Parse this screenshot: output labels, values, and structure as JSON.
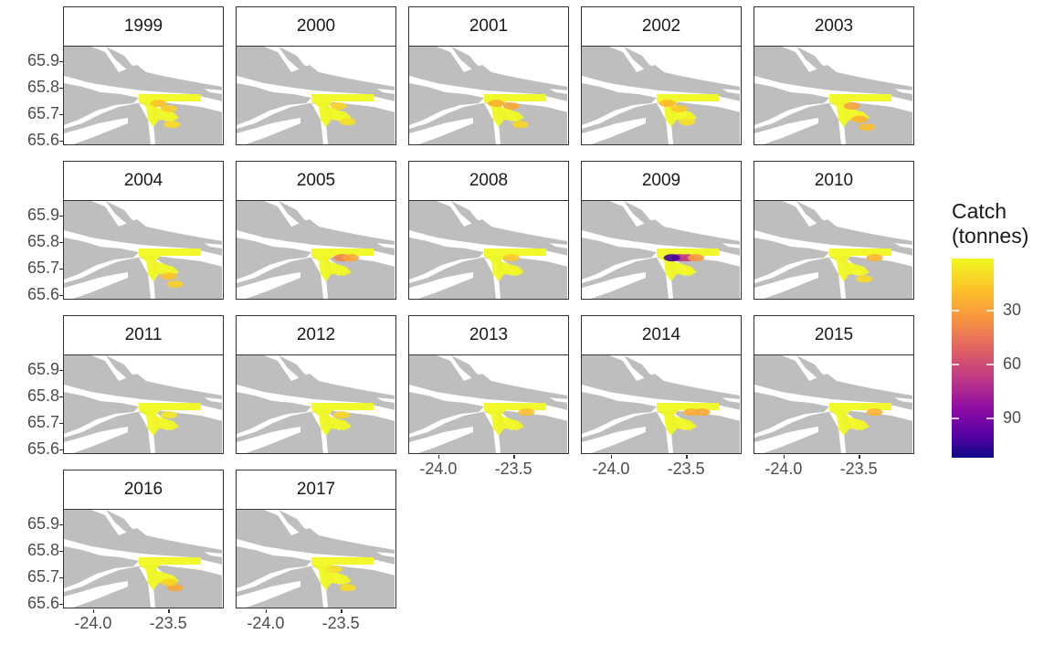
{
  "panels": [
    {
      "year": "1999",
      "spots": [
        {
          "lon": -23.57,
          "lat": 65.74,
          "catch": 18
        },
        {
          "lon": -23.5,
          "lat": 65.72,
          "catch": 14
        },
        {
          "lon": -23.48,
          "lat": 65.66,
          "catch": 10
        }
      ]
    },
    {
      "year": "2000",
      "spots": [
        {
          "lon": -23.52,
          "lat": 65.73,
          "catch": 12
        },
        {
          "lon": -23.46,
          "lat": 65.67,
          "catch": 8
        }
      ]
    },
    {
      "year": "2001",
      "spots": [
        {
          "lon": -23.62,
          "lat": 65.74,
          "catch": 25
        },
        {
          "lon": -23.52,
          "lat": 65.73,
          "catch": 28
        },
        {
          "lon": -23.46,
          "lat": 65.66,
          "catch": 12
        }
      ]
    },
    {
      "year": "2002",
      "spots": [
        {
          "lon": -23.63,
          "lat": 65.74,
          "catch": 22
        },
        {
          "lon": -23.55,
          "lat": 65.72,
          "catch": 16
        },
        {
          "lon": -23.5,
          "lat": 65.67,
          "catch": 8
        }
      ]
    },
    {
      "year": "2003",
      "spots": [
        {
          "lon": -23.55,
          "lat": 65.73,
          "catch": 30
        },
        {
          "lon": -23.5,
          "lat": 65.68,
          "catch": 24
        },
        {
          "lon": -23.45,
          "lat": 65.65,
          "catch": 20
        }
      ]
    },
    {
      "year": "2004",
      "spots": [
        {
          "lon": -23.5,
          "lat": 65.67,
          "catch": 18
        },
        {
          "lon": -23.46,
          "lat": 65.64,
          "catch": 14
        }
      ]
    },
    {
      "year": "2005",
      "spots": [
        {
          "lon": -23.5,
          "lat": 65.74,
          "catch": 42
        },
        {
          "lon": -23.44,
          "lat": 65.74,
          "catch": 30
        }
      ]
    },
    {
      "year": "2008",
      "spots": [
        {
          "lon": -23.52,
          "lat": 65.74,
          "catch": 16
        }
      ]
    },
    {
      "year": "2009",
      "spots": [
        {
          "lon": -23.55,
          "lat": 65.74,
          "catch": 75
        },
        {
          "lon": -23.5,
          "lat": 65.74,
          "catch": 70
        },
        {
          "lon": -23.6,
          "lat": 65.74,
          "catch": 110
        },
        {
          "lon": -23.44,
          "lat": 65.74,
          "catch": 35
        }
      ]
    },
    {
      "year": "2010",
      "spots": [
        {
          "lon": -23.4,
          "lat": 65.74,
          "catch": 24
        },
        {
          "lon": -23.47,
          "lat": 65.66,
          "catch": 10
        }
      ]
    },
    {
      "year": "2011",
      "spots": [
        {
          "lon": -23.5,
          "lat": 65.73,
          "catch": 6
        }
      ]
    },
    {
      "year": "2012",
      "spots": [
        {
          "lon": -23.5,
          "lat": 65.73,
          "catch": 12
        }
      ]
    },
    {
      "year": "2013",
      "spots": [
        {
          "lon": -23.42,
          "lat": 65.74,
          "catch": 20
        }
      ]
    },
    {
      "year": "2014",
      "spots": [
        {
          "lon": -23.47,
          "lat": 65.74,
          "catch": 26
        },
        {
          "lon": -23.4,
          "lat": 65.74,
          "catch": 28
        }
      ]
    },
    {
      "year": "2015",
      "spots": [
        {
          "lon": -23.4,
          "lat": 65.74,
          "catch": 24
        }
      ]
    },
    {
      "year": "2016",
      "spots": [
        {
          "lon": -23.46,
          "lat": 65.66,
          "catch": 28
        },
        {
          "lon": -23.5,
          "lat": 65.68,
          "catch": 14
        }
      ]
    },
    {
      "year": "2017",
      "spots": [
        {
          "lon": -23.46,
          "lat": 65.66,
          "catch": 10
        },
        {
          "lon": -23.55,
          "lat": 65.73,
          "catch": 8
        }
      ]
    }
  ],
  "axes": {
    "y_ticks": [
      "65.9",
      "65.8",
      "65.7",
      "65.6"
    ],
    "x_ticks": [
      "-24.0",
      "-23.5"
    ]
  },
  "legend": {
    "title_line1": "Catch",
    "title_line2": "(tonnes)",
    "ticks": [
      "30",
      "60",
      "90"
    ],
    "colors": {
      "low": "#f0f921",
      "mid": "#e16462",
      "high": "#0d0887"
    }
  }
}
